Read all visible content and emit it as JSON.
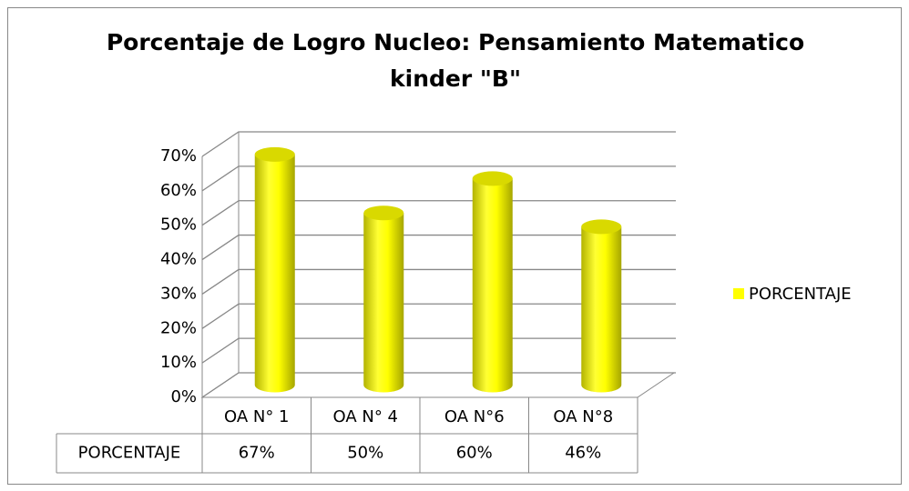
{
  "chart_data": {
    "type": "bar3d",
    "title": [
      "Porcentaje de Logro Nucleo: Pensamiento Matematico",
      "kinder \"B\""
    ],
    "categories": [
      "OA N° 1",
      "OA N° 4",
      "OA N°6",
      "OA N°8"
    ],
    "series": [
      {
        "name": "PORCENTAJE",
        "color": "#ffff00",
        "values": [
          67,
          50,
          60,
          46
        ],
        "value_labels": [
          "67%",
          "50%",
          "60%",
          "46%"
        ]
      }
    ],
    "ylim": [
      0,
      70
    ],
    "yticks": [
      {
        "value": 0,
        "label": "0%"
      },
      {
        "value": 10,
        "label": "10%"
      },
      {
        "value": 20,
        "label": "20%"
      },
      {
        "value": 30,
        "label": "30%"
      },
      {
        "value": 40,
        "label": "40%"
      },
      {
        "value": 50,
        "label": "50%"
      },
      {
        "value": 60,
        "label": "60%"
      },
      {
        "value": 70,
        "label": "70%"
      }
    ],
    "grid": true,
    "legend": "right",
    "data_table": true
  }
}
